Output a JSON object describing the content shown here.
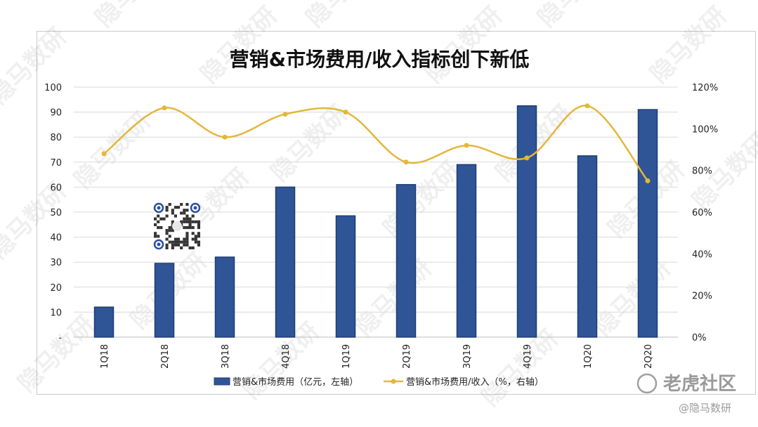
{
  "chart_data": {
    "type": "bar",
    "title": "营销&市场费用/收入指标创下新低",
    "categories": [
      "1Q18",
      "2Q18",
      "3Q18",
      "4Q18",
      "1Q19",
      "2Q19",
      "3Q19",
      "4Q19",
      "1Q20",
      "2Q20"
    ],
    "series": [
      {
        "name": "营销&市场费用（亿元，左轴）",
        "type": "bar",
        "axis": "left",
        "color": "#2f5597",
        "values": [
          12,
          29.5,
          32,
          60,
          48.5,
          61,
          69,
          92.5,
          72.5,
          91
        ]
      },
      {
        "name": "营销&市场费用/收入（%，右轴）",
        "type": "line",
        "axis": "right",
        "color": "#e3b73a",
        "values": [
          88,
          110,
          96,
          107,
          108,
          84,
          92,
          86,
          111,
          75
        ]
      }
    ],
    "y_left": {
      "min": 0,
      "max": 100,
      "ticks": [
        "-",
        "10",
        "20",
        "30",
        "40",
        "50",
        "60",
        "70",
        "80",
        "90",
        "100"
      ]
    },
    "y_right": {
      "min": 0,
      "max": 120,
      "ticks": [
        "0%",
        "20%",
        "40%",
        "60%",
        "80%",
        "100%",
        "120%"
      ]
    },
    "grid": true,
    "legend": "bottom"
  },
  "watermark": "隐马数研",
  "branding": {
    "community": "老虎社区",
    "handle": "@隐马数研"
  }
}
